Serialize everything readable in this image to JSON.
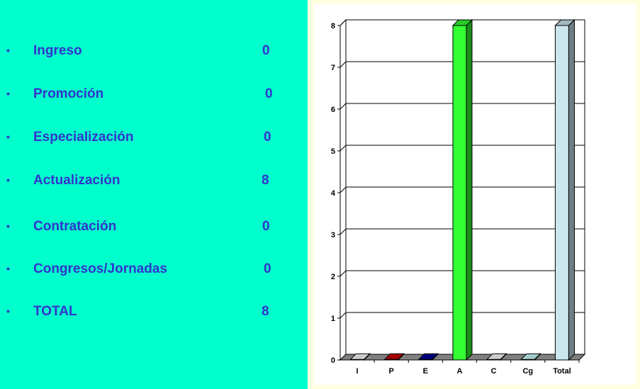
{
  "list": {
    "bullet": "•",
    "items": [
      {
        "label": "Ingreso",
        "value": "0"
      },
      {
        "label": "Promoción",
        "value": "0"
      },
      {
        "label": "Especialización",
        "value": "0"
      },
      {
        "label": "Actualización",
        "value": "8"
      },
      {
        "label": "Contratación",
        "value": "0"
      },
      {
        "label": "Congresos/Jornadas",
        "value": "0"
      },
      {
        "label": "TOTAL",
        "value": "8"
      }
    ]
  },
  "chart_data": {
    "type": "bar",
    "categories": [
      "I",
      "P",
      "E",
      "A",
      "C",
      "Cg",
      "Total"
    ],
    "values": [
      0,
      0,
      0,
      8,
      0,
      0,
      8
    ],
    "colors": [
      "#ffffff",
      "#cc0000",
      "#000099",
      "#33ff33",
      "#ffffff",
      "#ccffff",
      "#cce6ee"
    ],
    "ylim": [
      0,
      8
    ],
    "yticks": [
      "0",
      "1",
      "2",
      "3",
      "4",
      "5",
      "6",
      "7",
      "8"
    ],
    "grid": true,
    "three_d": true
  }
}
